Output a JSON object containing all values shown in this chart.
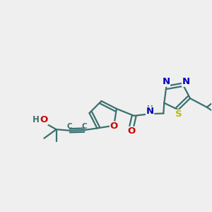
{
  "bg_color": "#efefef",
  "bond_color": "#3a7070",
  "bond_width": 1.6,
  "atom_colors": {
    "O": "#cc0000",
    "N": "#0000bb",
    "S": "#bbbb00",
    "C": "#3a7070",
    "H": "#3a7070"
  },
  "font_size": 8.5,
  "fig_size": [
    3.0,
    3.0
  ],
  "dpi": 100
}
